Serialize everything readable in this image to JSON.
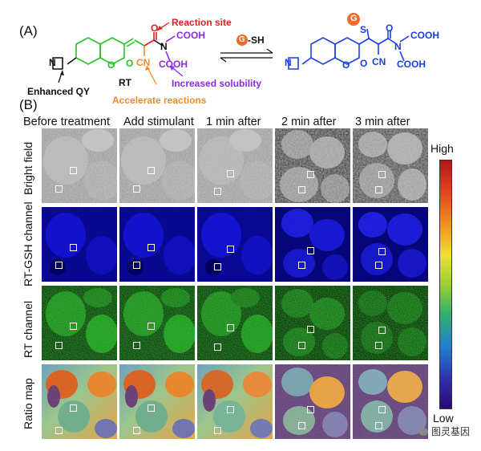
{
  "panel_a": {
    "label": "(A)",
    "molecule_left_name": "RT",
    "annotations": {
      "reaction_site": "Reaction site",
      "accelerate": "Accelerate reactions",
      "solubility": "Increased solubility",
      "qy": "Enhanced QY"
    },
    "reagent": "G-SH",
    "reagent_g": "G",
    "reagent_sh": "-SH",
    "groups": {
      "cooh": "COOH",
      "cn": "CN",
      "o": "O",
      "n": "N",
      "s": "S",
      "g": "G"
    },
    "colors": {
      "green": "#22c322",
      "red": "#e02020",
      "orange": "#f08a2a",
      "purple": "#8a2be2",
      "blue": "#1a3fe0",
      "orange_ball": "#f06a2a"
    }
  },
  "panel_b": {
    "label": "(B)",
    "columns": [
      "Before treatment",
      "Add stimulant",
      "1 min after",
      "2 min after",
      "3 min after"
    ],
    "rows": [
      "Bright field",
      "RT-GSH channel",
      "RT channel",
      "Ratio map"
    ],
    "colorbar": {
      "high": "High",
      "low": "Low"
    }
  },
  "watermark": "图灵基因"
}
